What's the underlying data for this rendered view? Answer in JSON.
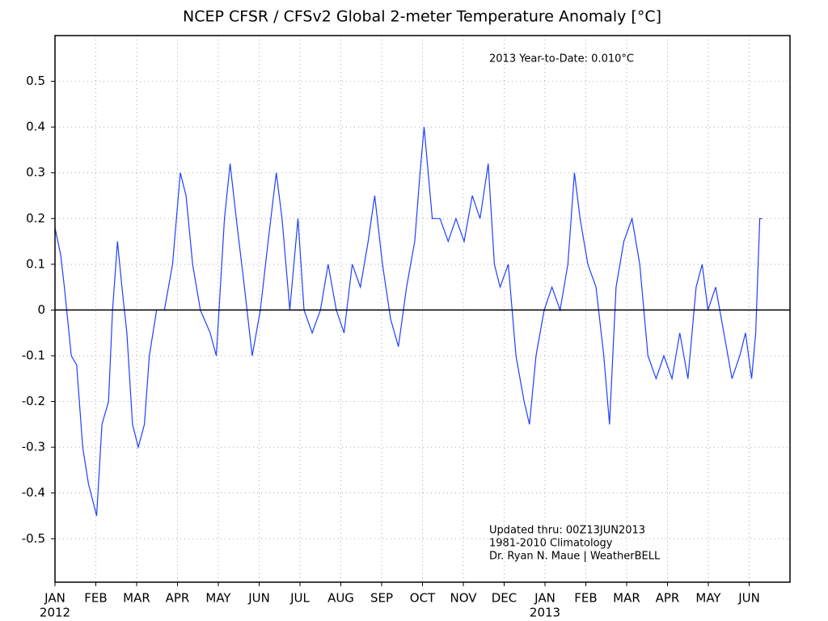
{
  "chart_data": {
    "type": "line",
    "title": "NCEP CFSR / CFSv2 Global 2-meter Temperature Anomaly [°C]",
    "annotations": [
      "2013 Year-to-Date: 0.010°C",
      "Updated thru: 00Z13JUN2013",
      "1981-2010 Climatology",
      "Dr. Ryan N. Maue | WeatherBELL"
    ],
    "xlim": [
      0,
      18
    ],
    "xticks": [
      {
        "value": 0,
        "label": "JAN"
      },
      {
        "value": 1,
        "label": "FEB"
      },
      {
        "value": 2,
        "label": "MAR"
      },
      {
        "value": 3,
        "label": "APR"
      },
      {
        "value": 4,
        "label": "MAY"
      },
      {
        "value": 5,
        "label": "JUN"
      },
      {
        "value": 6,
        "label": "JUL"
      },
      {
        "value": 7,
        "label": "AUG"
      },
      {
        "value": 8,
        "label": "SEP"
      },
      {
        "value": 9,
        "label": "OCT"
      },
      {
        "value": 10,
        "label": "NOV"
      },
      {
        "value": 11,
        "label": "DEC"
      },
      {
        "value": 12,
        "label": "JAN"
      },
      {
        "value": 13,
        "label": "FEB"
      },
      {
        "value": 14,
        "label": "MAR"
      },
      {
        "value": 15,
        "label": "APR"
      },
      {
        "value": 16,
        "label": "MAY"
      },
      {
        "value": 17,
        "label": "JUN"
      }
    ],
    "year_labels": [
      {
        "value": 0,
        "label": "2012"
      },
      {
        "value": 12,
        "label": "2013"
      }
    ],
    "ylim": [
      -0.595,
      0.6
    ],
    "yticks": [
      -0.5,
      -0.4,
      -0.3,
      -0.2,
      -0.1,
      0,
      0.1,
      0.2,
      0.3,
      0.4,
      0.5
    ],
    "grid": true,
    "reference_line": 0,
    "series": [
      {
        "color": "#1f3fff",
        "x": [
          0,
          0.14,
          0.23,
          0.4,
          0.53,
          0.68,
          0.82,
          1.02,
          1.15,
          1.31,
          1.41,
          1.53,
          1.64,
          1.76,
          1.9,
          2.04,
          2.19,
          2.31,
          2.49,
          2.68,
          2.88,
          3.07,
          3.21,
          3.37,
          3.56,
          3.8,
          3.95,
          4.15,
          4.29,
          4.44,
          4.64,
          4.83,
          5.03,
          5.22,
          5.42,
          5.56,
          5.75,
          5.95,
          6.1,
          6.3,
          6.5,
          6.69,
          6.89,
          7.08,
          7.28,
          7.48,
          7.67,
          7.83,
          8.02,
          8.22,
          8.41,
          8.61,
          8.81,
          8.94,
          9.04,
          9.24,
          9.43,
          9.63,
          9.82,
          10.02,
          10.22,
          10.41,
          10.61,
          10.76,
          10.9,
          11.1,
          11.29,
          11.49,
          11.62,
          11.78,
          11.98,
          12.17,
          12.37,
          12.56,
          12.72,
          12.86,
          13.05,
          13.25,
          13.44,
          13.58,
          13.74,
          13.93,
          14.13,
          14.32,
          14.52,
          14.72,
          14.91,
          15.11,
          15.3,
          15.5,
          15.7,
          15.85,
          15.99,
          16.18,
          16.38,
          16.58,
          16.77,
          16.91,
          17.06,
          17.16,
          17.26,
          17.32
        ],
        "values": [
          0.18,
          0.12,
          0.05,
          -0.1,
          -0.12,
          -0.3,
          -0.38,
          -0.45,
          -0.25,
          -0.2,
          0.0,
          0.15,
          0.05,
          -0.05,
          -0.25,
          -0.3,
          -0.25,
          -0.1,
          0.0,
          0.0,
          0.1,
          0.3,
          0.25,
          0.1,
          0.0,
          -0.05,
          -0.1,
          0.2,
          0.32,
          0.2,
          0.05,
          -0.1,
          0.0,
          0.15,
          0.3,
          0.2,
          0.0,
          0.2,
          0.0,
          -0.05,
          0.0,
          0.1,
          0.0,
          -0.05,
          0.1,
          0.05,
          0.15,
          0.25,
          0.1,
          -0.02,
          -0.08,
          0.05,
          0.15,
          0.3,
          0.4,
          0.2,
          0.2,
          0.15,
          0.2,
          0.15,
          0.25,
          0.2,
          0.32,
          0.1,
          0.05,
          0.1,
          -0.1,
          -0.2,
          -0.25,
          -0.1,
          0.0,
          0.05,
          0.0,
          0.1,
          0.3,
          0.2,
          0.1,
          0.05,
          -0.1,
          -0.25,
          0.05,
          0.15,
          0.2,
          0.1,
          -0.1,
          -0.15,
          -0.1,
          -0.15,
          -0.05,
          -0.15,
          0.05,
          0.1,
          0.0,
          0.05,
          -0.05,
          -0.15,
          -0.1,
          -0.05,
          -0.15,
          -0.05,
          0.2,
          0.2
        ]
      }
    ]
  }
}
